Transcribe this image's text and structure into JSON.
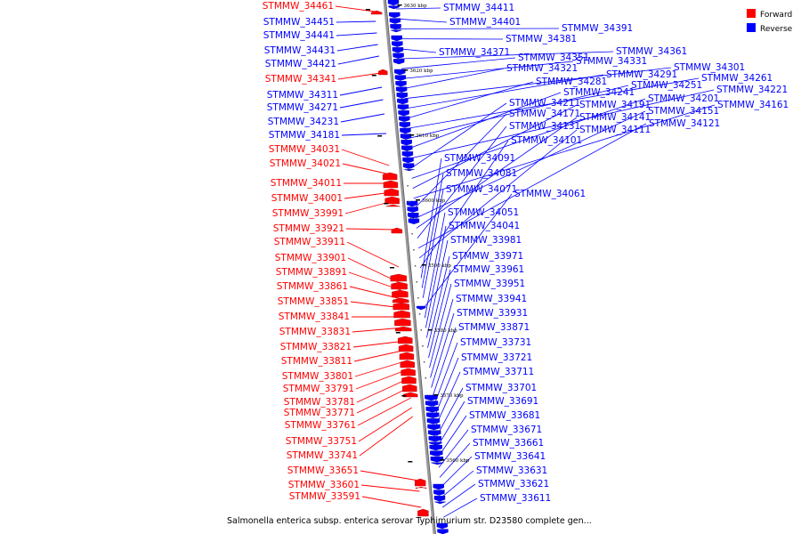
{
  "caption": "Salmonella enterica subsp. enterica serovar Typhimurium str. D23580 complete gen...",
  "legend": [
    {
      "label": "Forward",
      "color": "#ff0000"
    },
    {
      "label": "Reverse",
      "color": "#0000ff"
    }
  ],
  "colors": {
    "forward": "#ff0000",
    "reverse": "#0000ff",
    "backbone": "#888888"
  },
  "ticks": [
    {
      "label": "3630 kbp",
      "kbp": 3630
    },
    {
      "label": "3620 kbp",
      "kbp": 3620
    },
    {
      "label": "3610 kbp",
      "kbp": 3610
    },
    {
      "label": "3600 kbp",
      "kbp": 3600
    },
    {
      "label": "3590 kbp",
      "kbp": 3590
    },
    {
      "label": "3580 kbp",
      "kbp": 3580
    },
    {
      "label": "3570 kbp",
      "kbp": 3570
    },
    {
      "label": "3560 kbp",
      "kbp": 3560
    }
  ],
  "forward_genes": [
    "STMMW_34461",
    "STMMW_34451",
    "STMMW_34441",
    "STMMW_34431",
    "STMMW_34421",
    "STMMW_34341",
    "STMMW_34311",
    "STMMW_34271",
    "STMMW_34231",
    "STMMW_34181",
    "STMMW_34031",
    "STMMW_34021",
    "STMMW_34011",
    "STMMW_34001",
    "STMMW_33991",
    "STMMW_33921",
    "STMMW_33911",
    "STMMW_33901",
    "STMMW_33891",
    "STMMW_33861",
    "STMMW_33851",
    "STMMW_33841",
    "STMMW_33831",
    "STMMW_33821",
    "STMMW_33811",
    "STMMW_33801",
    "STMMW_33791",
    "STMMW_33781",
    "STMMW_33771",
    "STMMW_33761",
    "STMMW_33751",
    "STMMW_33741",
    "STMMW_33651",
    "STMMW_33601",
    "STMMW_33591"
  ],
  "forward_strand": [
    "forward",
    "reverse",
    "reverse",
    "reverse",
    "reverse",
    "forward",
    "reverse",
    "reverse",
    "reverse",
    "reverse",
    "forward",
    "forward",
    "forward",
    "forward",
    "forward",
    "forward",
    "forward",
    "forward",
    "forward",
    "forward",
    "forward",
    "forward",
    "forward",
    "forward",
    "forward",
    "forward",
    "forward",
    "forward",
    "forward",
    "forward",
    "forward",
    "forward",
    "forward",
    "forward",
    "forward"
  ],
  "reverse_genes": [
    "STMMW_34411",
    "STMMW_34401",
    "STMMW_34391",
    "STMMW_34381",
    "STMMW_34371",
    "STMMW_34361",
    "STMMW_34351",
    "STMMW_34331",
    "STMMW_34321",
    "STMMW_34301",
    "STMMW_34291",
    "STMMW_34281",
    "STMMW_34261",
    "STMMW_34251",
    "STMMW_34241",
    "STMMW_34221",
    "STMMW_34211",
    "STMMW_34201",
    "STMMW_34191",
    "STMMW_34161",
    "STMMW_34171",
    "STMMW_34151",
    "STMMW_34141",
    "STMMW_34131",
    "STMMW_34121",
    "STMMW_34111",
    "STMMW_34101",
    "STMMW_34091",
    "STMMW_34081",
    "STMMW_34071",
    "STMMW_34061",
    "STMMW_34051",
    "STMMW_34041",
    "STMMW_33981",
    "STMMW_33971",
    "STMMW_33961",
    "STMMW_33951",
    "STMMW_33941",
    "STMMW_33931",
    "STMMW_33871",
    "STMMW_33731",
    "STMMW_33721",
    "STMMW_33711",
    "STMMW_33701",
    "STMMW_33691",
    "STMMW_33681",
    "STMMW_33671",
    "STMMW_33661",
    "STMMW_33641",
    "STMMW_33631",
    "STMMW_33621",
    "STMMW_33611"
  ]
}
